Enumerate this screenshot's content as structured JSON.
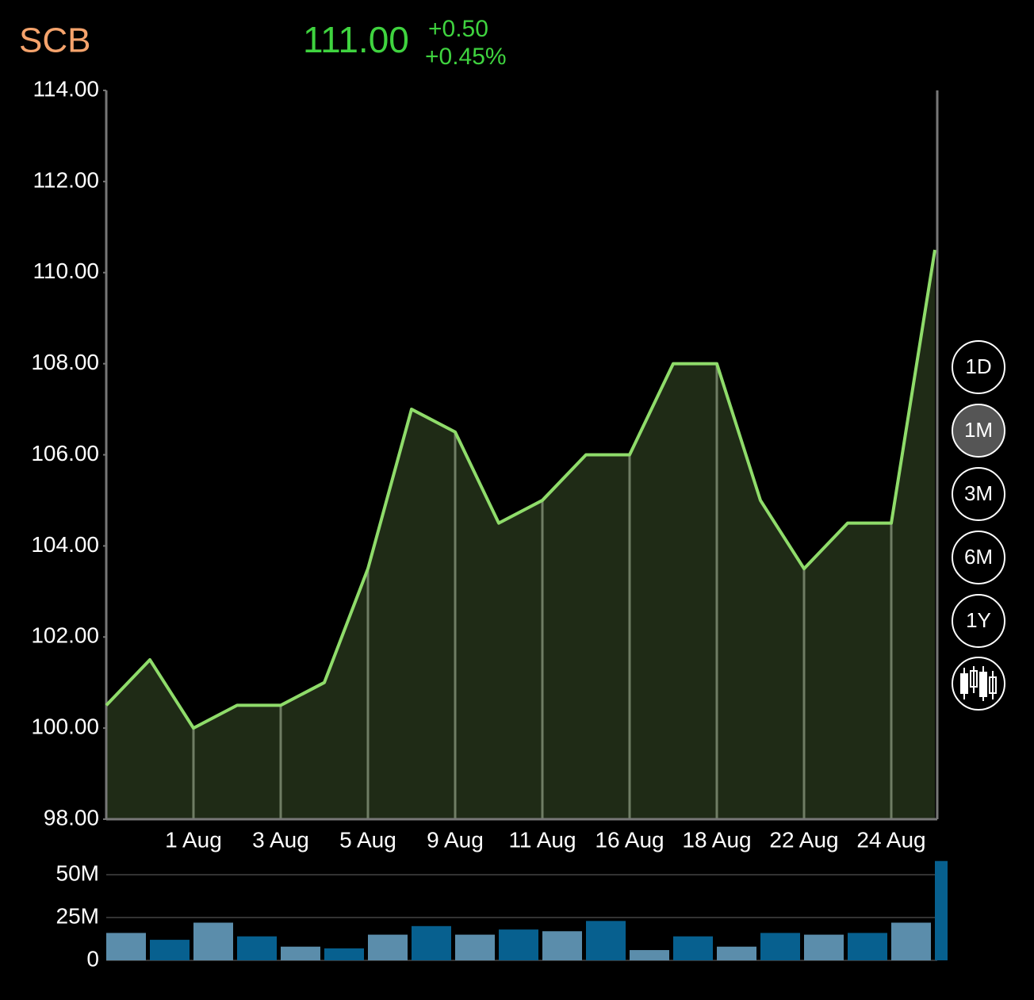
{
  "header": {
    "symbol": "SCB",
    "price": "111.00",
    "change": "+0.50",
    "change_percent": "+0.45%"
  },
  "chart_data": [
    {
      "type": "area",
      "categories": [
        null,
        null,
        "1 Aug",
        null,
        "3 Aug",
        null,
        "5 Aug",
        null,
        "9 Aug",
        null,
        "11 Aug",
        null,
        "16 Aug",
        null,
        "18 Aug",
        null,
        "22 Aug",
        null,
        "24 Aug",
        null
      ],
      "values": [
        100.5,
        101.5,
        100.0,
        100.5,
        100.5,
        101.0,
        103.5,
        107.0,
        106.5,
        104.5,
        105.0,
        106.0,
        106.0,
        108.0,
        108.0,
        105.0,
        103.5,
        104.5,
        104.5,
        110.5
      ],
      "color": "#8fdc6a",
      "fill": "#1f2b16",
      "ylim": [
        98,
        114
      ],
      "yticks": [
        {
          "value": 98,
          "label": "98.00"
        },
        {
          "value": 100,
          "label": "100.00"
        },
        {
          "value": 102,
          "label": "102.00"
        },
        {
          "value": 104,
          "label": "104.00"
        },
        {
          "value": 106,
          "label": "106.00"
        },
        {
          "value": 108,
          "label": "108.00"
        },
        {
          "value": 110,
          "label": "110.00"
        },
        {
          "value": 112,
          "label": "112.00"
        },
        {
          "value": 114,
          "label": "114.00"
        }
      ]
    },
    {
      "type": "bar",
      "values": [
        16000000,
        12000000,
        22000000,
        14000000,
        8000000,
        7000000,
        15000000,
        20000000,
        15000000,
        18000000,
        17000000,
        23000000,
        6000000,
        14000000,
        8000000,
        16000000,
        15000000,
        16000000,
        22000000,
        58000000
      ],
      "colors": [
        "#5b8dab",
        "#07608f",
        "#5b8dab",
        "#07608f",
        "#5b8dab",
        "#07608f",
        "#5b8dab",
        "#07608f",
        "#5b8dab",
        "#07608f",
        "#5b8dab",
        "#07608f",
        "#5b8dab",
        "#07608f",
        "#5b8dab",
        "#07608f",
        "#5b8dab",
        "#07608f",
        "#5b8dab",
        "#07608f"
      ],
      "ylim": [
        0,
        58000000
      ],
      "yticks": [
        0,
        {
          "value": 25000000,
          "label": "25M"
        },
        {
          "value": 50000000,
          "label": "50M"
        }
      ],
      "grid": true
    }
  ],
  "controls": {
    "ranges": [
      "1D",
      "1M",
      "3M",
      "6M",
      "1Y"
    ],
    "selected": "1M"
  }
}
